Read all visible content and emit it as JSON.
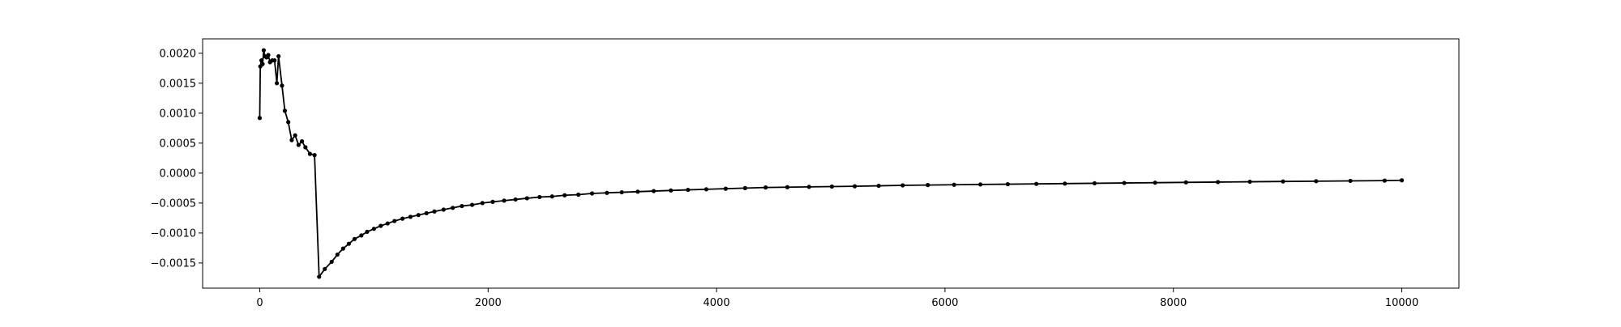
{
  "chart_data": {
    "type": "line",
    "title": "",
    "xlabel": "",
    "ylabel": "",
    "xlim": [
      -500,
      10500
    ],
    "ylim": [
      -0.00192,
      0.00224
    ],
    "grid": false,
    "legend": "none",
    "line_color": "#000000",
    "marker": "circle",
    "x_ticks": [
      {
        "value": 0,
        "label": "0"
      },
      {
        "value": 2000,
        "label": "2000"
      },
      {
        "value": 4000,
        "label": "4000"
      },
      {
        "value": 6000,
        "label": "6000"
      },
      {
        "value": 8000,
        "label": "8000"
      },
      {
        "value": 10000,
        "label": "10000"
      }
    ],
    "y_ticks": [
      {
        "value": -0.0015,
        "label": "−0.0015"
      },
      {
        "value": -0.001,
        "label": "−0.0010"
      },
      {
        "value": -0.0005,
        "label": "−0.0005"
      },
      {
        "value": 0.0,
        "label": "0.0000"
      },
      {
        "value": 0.0005,
        "label": "0.0005"
      },
      {
        "value": 0.001,
        "label": "0.0010"
      },
      {
        "value": 0.0015,
        "label": "0.0015"
      },
      {
        "value": 0.002,
        "label": "0.0020"
      }
    ],
    "series": [
      {
        "x": [
          0,
          5,
          15,
          25,
          35,
          45,
          60,
          75,
          90,
          110,
          130,
          150,
          165,
          195,
          220,
          250,
          280,
          310,
          340,
          370,
          400,
          440,
          480,
          520,
          570,
          630,
          680,
          730,
          780,
          830,
          890,
          940,
          1000,
          1060,
          1120,
          1180,
          1250,
          1320,
          1390,
          1460,
          1530,
          1610,
          1690,
          1770,
          1860,
          1950,
          2040,
          2140,
          2240,
          2340,
          2450,
          2560,
          2670,
          2790,
          2910,
          3040,
          3170,
          3310,
          3450,
          3600,
          3750,
          3910,
          4080,
          4250,
          4430,
          4620,
          4810,
          5010,
          5210,
          5420,
          5630,
          5850,
          6080,
          6310,
          6550,
          6800,
          7050,
          7310,
          7570,
          7840,
          8110,
          8390,
          8670,
          8960,
          9250,
          9550,
          9850,
          10000
        ],
        "y": [
          0.00092,
          0.00178,
          0.00188,
          0.00182,
          0.00205,
          0.00195,
          0.00193,
          0.00197,
          0.00185,
          0.00188,
          0.00188,
          0.0015,
          0.00195,
          0.00146,
          0.00104,
          0.00085,
          0.00055,
          0.00063,
          0.00047,
          0.00053,
          0.00043,
          0.00032,
          0.0003,
          -0.00173,
          -0.0016,
          -0.00148,
          -0.00136,
          -0.00126,
          -0.00118,
          -0.0011,
          -0.00104,
          -0.00098,
          -0.00093,
          -0.00088,
          -0.00084,
          -0.0008,
          -0.00076,
          -0.00073,
          -0.0007,
          -0.00067,
          -0.00064,
          -0.00061,
          -0.00058,
          -0.00055,
          -0.00053,
          -0.0005,
          -0.00048,
          -0.00046,
          -0.00044,
          -0.00042,
          -0.0004,
          -0.00039,
          -0.00037,
          -0.00036,
          -0.00034,
          -0.00033,
          -0.00032,
          -0.00031,
          -0.0003,
          -0.00029,
          -0.00028,
          -0.00027,
          -0.00026,
          -0.00025,
          -0.00024,
          -0.000235,
          -0.00023,
          -0.000225,
          -0.00022,
          -0.000212,
          -0.000205,
          -0.0002,
          -0.000195,
          -0.00019,
          -0.000185,
          -0.00018,
          -0.000175,
          -0.00017,
          -0.000165,
          -0.00016,
          -0.000155,
          -0.00015,
          -0.000145,
          -0.00014,
          -0.000135,
          -0.00013,
          -0.000125,
          -0.00012
        ]
      }
    ]
  }
}
